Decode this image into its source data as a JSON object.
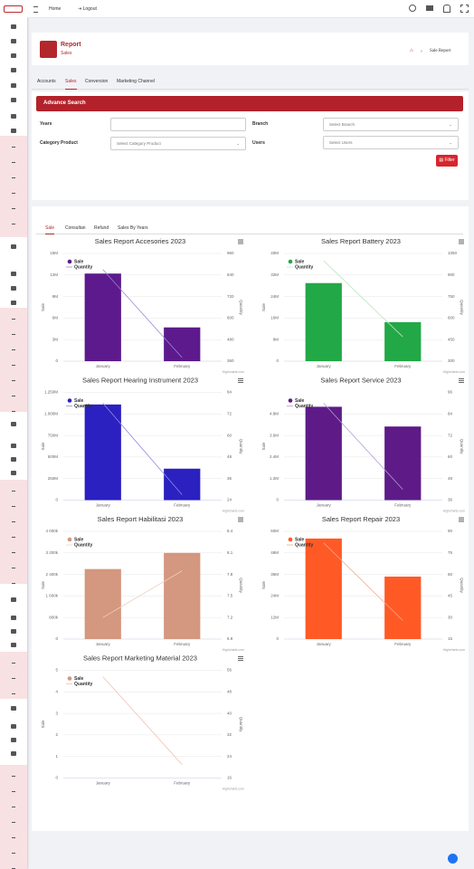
{
  "topbar": {
    "links": [
      "Home",
      "Logout"
    ]
  },
  "header": {
    "title": "Report",
    "subtitle": "Sales",
    "breadcrumb": "Sale Report"
  },
  "tabs": [
    "Accounts",
    "Sales",
    "Conversion",
    "Marketing Channel"
  ],
  "search": {
    "title": "Advance Search",
    "fields": [
      {
        "label": "Years"
      },
      {
        "label": "Branch",
        "placeholder": "Select Branch"
      },
      {
        "label": "Category Product",
        "placeholder": "Select Category Product"
      },
      {
        "label": "Users",
        "placeholder": "Select Users"
      }
    ],
    "button": "Filter"
  },
  "chart_tabs": [
    "Sale",
    "Consultan",
    "Refund",
    "Sales By Years"
  ],
  "chart_data": [
    {
      "type": "bar",
      "title": "Sales Report Accesories 2023",
      "categories": [
        "January",
        "February"
      ],
      "series": [
        {
          "name": "Sale",
          "color": "#5c1a8c",
          "values": [
            12200000,
            4700000
          ]
        },
        {
          "name": "Quantity",
          "type": "line",
          "axis": "y2",
          "color": "#9a86d6",
          "values": [
            870,
            380
          ]
        }
      ],
      "ylabel": "Sale",
      "y2label": "Quantity",
      "ylim": [
        0,
        15000000
      ],
      "yticks": [
        0,
        {
          "value": 3000000,
          "label": "3M"
        },
        {
          "value": 6000000,
          "label": "6M"
        },
        {
          "value": 9000000,
          "label": "9M"
        },
        {
          "value": 12000000,
          "label": "12M"
        },
        {
          "value": 15000000,
          "label": "15M"
        }
      ],
      "y2lim": [
        360,
        960
      ],
      "y2ticks": [
        360,
        480,
        600,
        720,
        840,
        960
      ],
      "credits": "Highcharts.com"
    },
    {
      "type": "bar",
      "title": "Sales Report Battery 2023",
      "categories": [
        "January",
        "February"
      ],
      "series": [
        {
          "name": "Sale",
          "color": "#22a846",
          "values": [
            29000000,
            14500000
          ]
        },
        {
          "name": "Quantity",
          "type": "line",
          "axis": "y2",
          "color": "#b8e6c4",
          "values": [
            1000,
            470
          ]
        }
      ],
      "ylabel": "Sale",
      "y2label": "Quantity",
      "ylim": [
        0,
        40000000
      ],
      "yticks": [
        0,
        {
          "value": 8000000,
          "label": "8M"
        },
        {
          "value": 16000000,
          "label": "16M"
        },
        {
          "value": 24000000,
          "label": "24M"
        },
        {
          "value": 32000000,
          "label": "32M"
        },
        {
          "value": 40000000,
          "label": "40M"
        }
      ],
      "y2lim": [
        300,
        1050
      ],
      "y2ticks": [
        300,
        450,
        600,
        750,
        900,
        1050
      ],
      "credits": "Highcharts.com"
    },
    {
      "type": "bar",
      "title": "Sales Report Hearing Instrument 2023",
      "categories": [
        "January",
        "February"
      ],
      "series": [
        {
          "name": "Sale",
          "color": "#2b20c0",
          "values": [
            1110000000,
            365000000
          ]
        },
        {
          "name": "Quantity",
          "type": "line",
          "axis": "y2",
          "color": "#8f8ae0",
          "values": [
            78,
            27
          ]
        }
      ],
      "ylabel": "Sale",
      "y2label": "Quantity",
      "ylim": [
        0,
        1250000000
      ],
      "yticks": [
        0,
        {
          "value": 250000000,
          "label": "250M"
        },
        {
          "value": 500000000,
          "label": "500M"
        },
        {
          "value": 750000000,
          "label": "750M"
        },
        {
          "value": 1000000000,
          "label": "1.000M"
        },
        {
          "value": 1250000000,
          "label": "1.250M"
        }
      ],
      "y2lim": [
        24,
        84
      ],
      "y2ticks": [
        24,
        36,
        48,
        60,
        72,
        84
      ],
      "credits": "Highcharts.com"
    },
    {
      "type": "bar",
      "title": "Sales Report Service 2023",
      "categories": [
        "January",
        "February"
      ],
      "series": [
        {
          "name": "Sale",
          "color": "#5e1b88",
          "values": [
            5200000,
            4100000
          ]
        },
        {
          "name": "Quantity",
          "type": "line",
          "axis": "y2",
          "color": "#b49cd0",
          "values": [
            90,
            42
          ]
        }
      ],
      "ylabel": "Sale",
      "y2label": "Quantity",
      "ylim": [
        0,
        6000000
      ],
      "yticks": [
        0,
        {
          "value": 1200000,
          "label": "1.2M"
        },
        {
          "value": 2400000,
          "label": "2.4M"
        },
        {
          "value": 3600000,
          "label": "3.6M"
        },
        {
          "value": 4800000,
          "label": "4.8M"
        }
      ],
      "y2lim": [
        36,
        96
      ],
      "y2ticks": [
        36,
        48,
        60,
        72,
        84,
        96
      ],
      "credits": "Highcharts.com"
    },
    {
      "type": "bar",
      "title": "Sales Report Habilitasi 2023",
      "categories": [
        "January",
        "February"
      ],
      "series": [
        {
          "name": "Sale",
          "color": "#d4977f",
          "values": [
            2600000,
            3200000
          ]
        },
        {
          "name": "Quantity",
          "type": "line",
          "axis": "y2",
          "color": "#f0cfc3",
          "values": [
            7.2,
            7.85
          ]
        }
      ],
      "ylabel": "Sale",
      "y2label": "Quantity",
      "ylim": [
        0,
        4000000
      ],
      "yticks": [
        0,
        {
          "value": 800000,
          "label": "800k"
        },
        {
          "value": 1600000,
          "label": "1 600k"
        },
        {
          "value": 2400000,
          "label": "2 400k"
        },
        {
          "value": 3200000,
          "label": "3 200k"
        },
        {
          "value": 4000000,
          "label": "4 000k"
        }
      ],
      "y2lim": [
        6.9,
        8.4
      ],
      "y2ticks": [
        6.9,
        7.2,
        7.5,
        7.8,
        8.1,
        8.4
      ],
      "credits": "Highcharts.com"
    },
    {
      "type": "bar",
      "title": "Sales Report Repair 2023",
      "categories": [
        "January",
        "February"
      ],
      "series": [
        {
          "name": "Sale",
          "color": "#ff5a26",
          "values": [
            56000000,
            34800000
          ]
        },
        {
          "name": "Quantity",
          "type": "line",
          "axis": "y2",
          "color": "#f2a98f",
          "values": [
            82,
            28
          ]
        }
      ],
      "ylabel": "Sale",
      "y2label": "Quantity",
      "ylim": [
        0,
        60000000
      ],
      "yticks": [
        0,
        {
          "value": 12000000,
          "label": "12M"
        },
        {
          "value": 24000000,
          "label": "24M"
        },
        {
          "value": 36000000,
          "label": "36M"
        },
        {
          "value": 48000000,
          "label": "48M"
        },
        {
          "value": 60000000,
          "label": "60M"
        }
      ],
      "y2lim": [
        15,
        90
      ],
      "y2ticks": [
        15,
        30,
        45,
        60,
        75,
        90
      ],
      "credits": "Highcharts.com"
    },
    {
      "type": "bar",
      "title": "Sales Report Marketing Material 2023",
      "categories": [
        "January",
        "February"
      ],
      "series": [
        {
          "name": "Sale",
          "color": "#d4977f",
          "values": [
            0,
            0
          ]
        },
        {
          "name": "Quantity",
          "type": "line",
          "axis": "y2",
          "color": "#f0bfb0",
          "values": [
            53.6,
            21
          ]
        }
      ],
      "ylabel": "Sale",
      "y2label": "Quantity",
      "ylim": [
        0,
        5
      ],
      "yticks": [
        0,
        1,
        2,
        3,
        4,
        5
      ],
      "y2lim": [
        16,
        56
      ],
      "y2ticks": [
        16,
        24,
        32,
        40,
        48,
        56
      ],
      "credits": "Highcharts.com"
    }
  ]
}
